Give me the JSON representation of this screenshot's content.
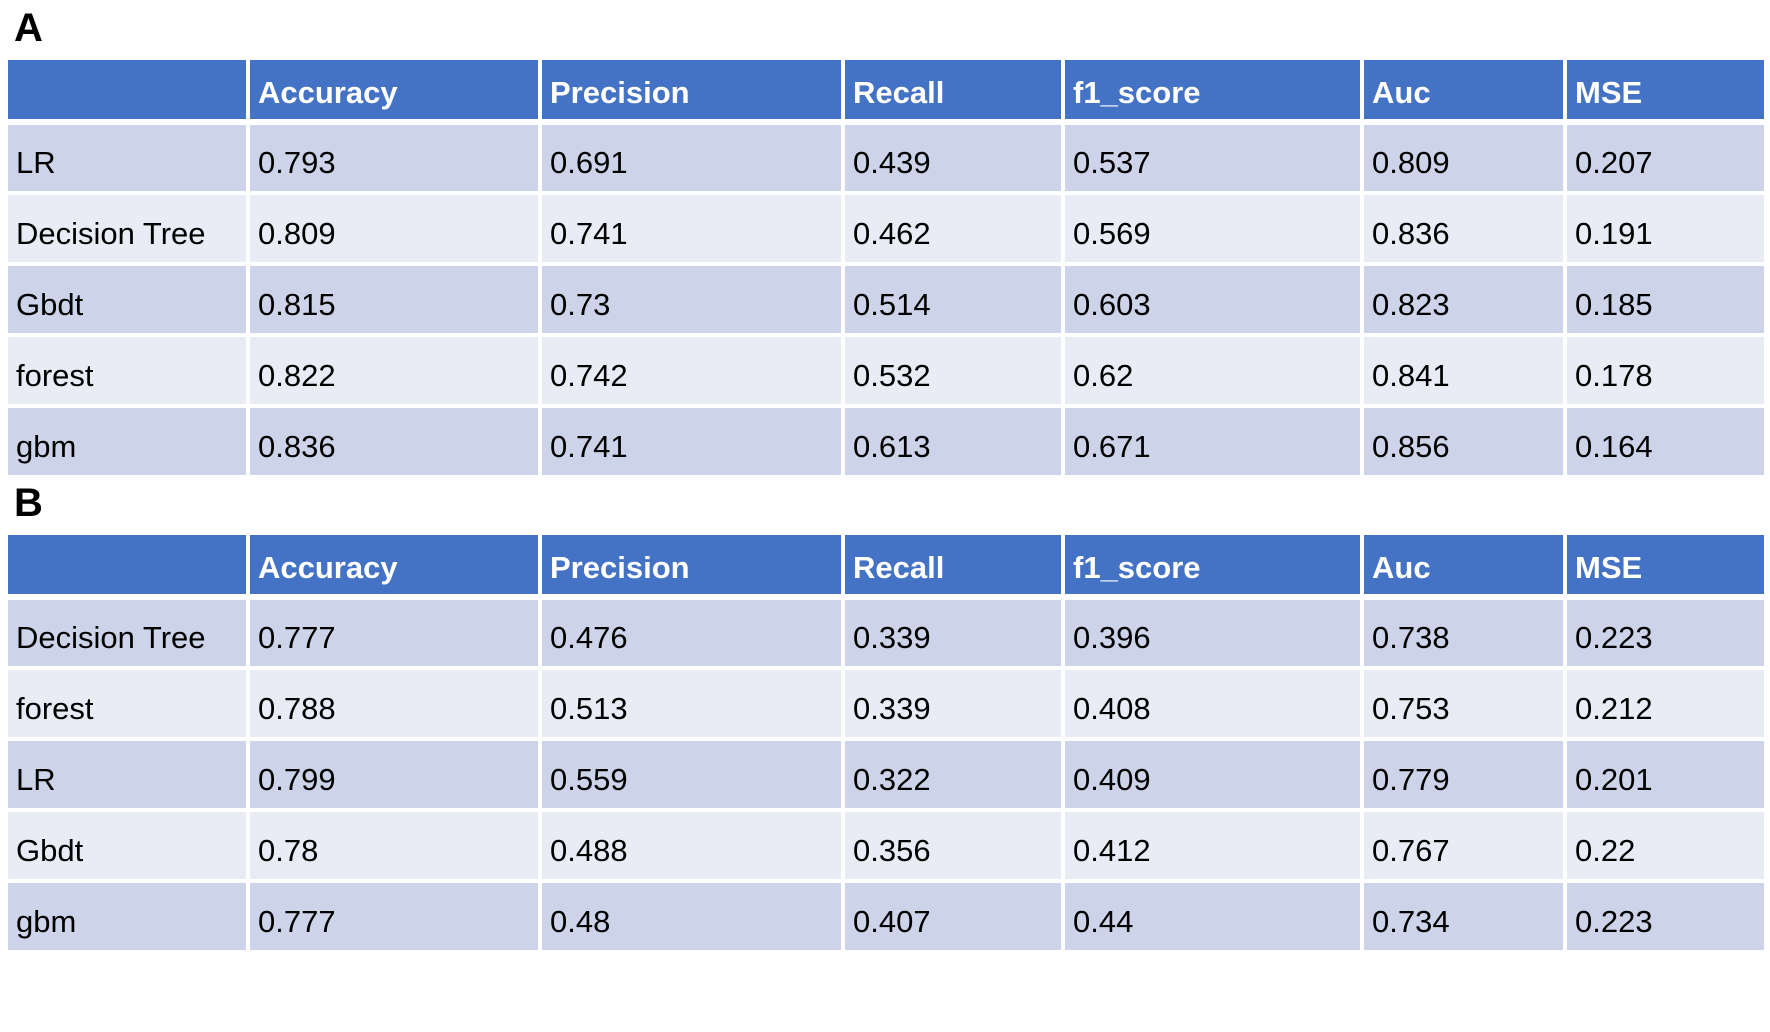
{
  "colors": {
    "header_bg": "#4472C4",
    "header_text": "#FFFFFF",
    "row_odd_bg": "#CDD4E9",
    "row_even_bg": "#E9EBF5",
    "border": "#FFFFFF",
    "body_text": "#000000",
    "panel_label_text": "#000000"
  },
  "chart_data": [
    {
      "type": "table",
      "label": "A",
      "columns": [
        "",
        "Accuracy",
        "Precision",
        "Recall",
        "f1_score",
        "Auc",
        "MSE"
      ],
      "rows": [
        {
          "name": "LR",
          "values": [
            "0.793",
            "0.691",
            "0.439",
            "0.537",
            "0.809",
            "0.207"
          ]
        },
        {
          "name": "Decision Tree",
          "values": [
            "0.809",
            "0.741",
            "0.462",
            "0.569",
            "0.836",
            "0.191"
          ]
        },
        {
          "name": "Gbdt",
          "values": [
            "0.815",
            "0.73",
            "0.514",
            "0.603",
            "0.823",
            "0.185"
          ]
        },
        {
          "name": "forest",
          "values": [
            "0.822",
            "0.742",
            "0.532",
            "0.62",
            "0.841",
            "0.178"
          ]
        },
        {
          "name": "gbm",
          "values": [
            "0.836",
            "0.741",
            "0.613",
            "0.671",
            "0.856",
            "0.164"
          ]
        }
      ]
    },
    {
      "type": "table",
      "label": "B",
      "columns": [
        "",
        "Accuracy",
        "Precision",
        "Recall",
        "f1_score",
        "Auc",
        "MSE"
      ],
      "rows": [
        {
          "name": "Decision Tree",
          "values": [
            "0.777",
            "0.476",
            "0.339",
            "0.396",
            "0.738",
            "0.223"
          ]
        },
        {
          "name": "forest",
          "values": [
            "0.788",
            "0.513",
            "0.339",
            "0.408",
            "0.753",
            "0.212"
          ]
        },
        {
          "name": "LR",
          "values": [
            "0.799",
            "0.559",
            "0.322",
            "0.409",
            "0.779",
            "0.201"
          ]
        },
        {
          "name": "Gbdt",
          "values": [
            "0.78",
            "0.488",
            "0.356",
            "0.412",
            "0.767",
            "0.22"
          ]
        },
        {
          "name": "gbm",
          "values": [
            "0.777",
            "0.48",
            "0.407",
            "0.44",
            "0.734",
            "0.223"
          ]
        }
      ]
    }
  ]
}
